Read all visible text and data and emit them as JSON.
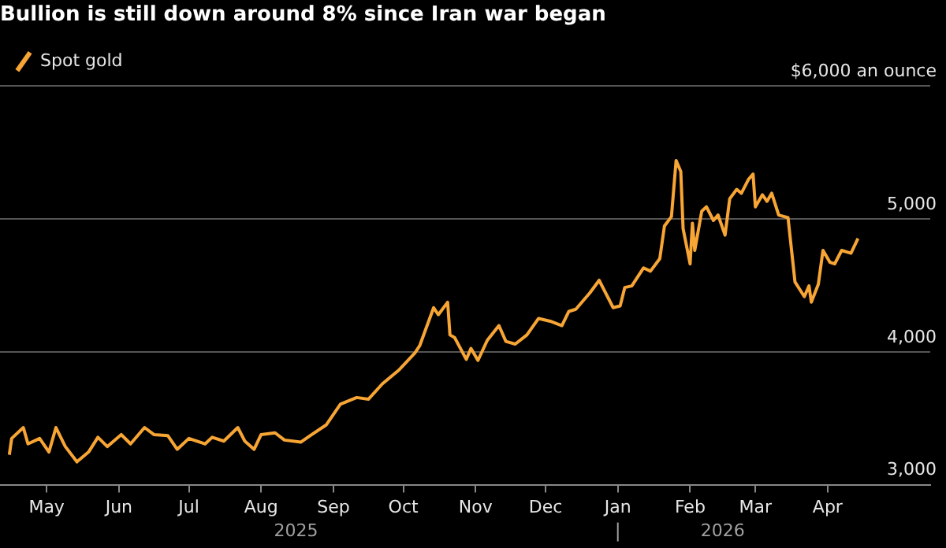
{
  "chart_data": {
    "type": "line",
    "title": "Bullion is still down around 8% since Iran war began",
    "legend": "top left",
    "grid": "y",
    "marker": "none",
    "line_style": "solid",
    "annotations": [
      "2025",
      "2026"
    ],
    "xlim": [
      "2025-04-11",
      "2026-05-15"
    ],
    "xticks": [
      {
        "value": "2025-05-01",
        "label": "May"
      },
      {
        "value": "2025-06-01",
        "label": "Jun"
      },
      {
        "value": "2025-07-01",
        "label": "Jul"
      },
      {
        "value": "2025-08-01",
        "label": "Aug"
      },
      {
        "value": "2025-09-01",
        "label": "Sep"
      },
      {
        "value": "2025-10-01",
        "label": "Oct"
      },
      {
        "value": "2025-11-01",
        "label": "Nov"
      },
      {
        "value": "2025-12-01",
        "label": "Dec"
      },
      {
        "value": "2026-01-01",
        "label": "Jan"
      },
      {
        "value": "2026-02-01",
        "label": "Feb"
      },
      {
        "value": "2026-03-01",
        "label": "Mar"
      },
      {
        "value": "2026-04-01",
        "label": "Apr"
      }
    ],
    "ylim": [
      3000,
      6000
    ],
    "yticks": [
      {
        "value": 3000,
        "label": "3,000"
      },
      {
        "value": 4000,
        "label": "4,000"
      },
      {
        "value": 5000,
        "label": "5,000"
      },
      {
        "value": 6000,
        "label": "$6,000 an ounce"
      }
    ],
    "x": [
      "2025-04-15",
      "2025-04-16",
      "2025-04-21",
      "2025-04-23",
      "2025-04-28",
      "2025-05-02",
      "2025-05-05",
      "2025-05-09",
      "2025-05-14",
      "2025-05-19",
      "2025-05-23",
      "2025-05-27",
      "2025-06-02",
      "2025-06-06",
      "2025-06-12",
      "2025-06-16",
      "2025-06-22",
      "2025-06-26",
      "2025-07-01",
      "2025-07-08",
      "2025-07-11",
      "2025-07-16",
      "2025-07-22",
      "2025-07-25",
      "2025-07-29",
      "2025-08-01",
      "2025-08-07",
      "2025-08-11",
      "2025-08-18",
      "2025-08-22",
      "2025-08-29",
      "2025-09-04",
      "2025-09-11",
      "2025-09-16",
      "2025-09-22",
      "2025-09-29",
      "2025-10-06",
      "2025-10-08",
      "2025-10-14",
      "2025-10-16",
      "2025-10-20",
      "2025-10-21",
      "2025-10-23",
      "2025-10-28",
      "2025-10-30",
      "2025-11-02",
      "2025-11-06",
      "2025-11-11",
      "2025-11-14",
      "2025-11-18",
      "2025-11-23",
      "2025-11-28",
      "2025-12-03",
      "2025-12-08",
      "2025-12-11",
      "2025-12-14",
      "2025-12-20",
      "2025-12-24",
      "2025-12-30",
      "2026-01-02",
      "2026-01-04",
      "2026-01-07",
      "2026-01-12",
      "2026-01-15",
      "2026-01-19",
      "2026-01-21",
      "2026-01-24",
      "2026-01-26",
      "2026-01-28",
      "2026-01-29",
      "2026-02-01",
      "2026-02-02",
      "2026-02-03",
      "2026-02-06",
      "2026-02-08",
      "2026-02-11",
      "2026-02-13",
      "2026-02-16",
      "2026-02-18",
      "2026-02-21",
      "2026-02-23",
      "2026-02-26",
      "2026-02-28",
      "2026-03-01",
      "2026-03-04",
      "2026-03-06",
      "2026-03-08",
      "2026-03-11",
      "2026-03-15",
      "2026-03-18",
      "2026-03-22",
      "2026-03-24",
      "2026-03-25",
      "2026-03-28",
      "2026-03-30",
      "2026-04-02",
      "2026-04-04",
      "2026-04-07",
      "2026-04-11",
      "2026-04-14"
    ],
    "series": [
      {
        "name": "Spot gold",
        "color": "#f7a534",
        "values": [
          3225,
          3348,
          3430,
          3307,
          3348,
          3246,
          3430,
          3287,
          3172,
          3246,
          3357,
          3287,
          3377,
          3307,
          3430,
          3377,
          3369,
          3266,
          3348,
          3307,
          3357,
          3328,
          3430,
          3328,
          3266,
          3377,
          3390,
          3336,
          3320,
          3369,
          3451,
          3606,
          3656,
          3643,
          3759,
          3861,
          3992,
          4045,
          4332,
          4279,
          4373,
          4127,
          4107,
          3943,
          4025,
          3935,
          4086,
          4197,
          4078,
          4058,
          4127,
          4251,
          4230,
          4197,
          4304,
          4320,
          4443,
          4538,
          4332,
          4345,
          4484,
          4496,
          4631,
          4607,
          4701,
          4947,
          5017,
          5439,
          5357,
          4927,
          4661,
          4968,
          4763,
          5058,
          5091,
          4988,
          5029,
          4878,
          5152,
          5222,
          5193,
          5296,
          5337,
          5091,
          5181,
          5132,
          5193,
          5029,
          5009,
          4525,
          4415,
          4496,
          4373,
          4508,
          4763,
          4673,
          4661,
          4763,
          4742,
          4853
        ]
      }
    ]
  }
}
